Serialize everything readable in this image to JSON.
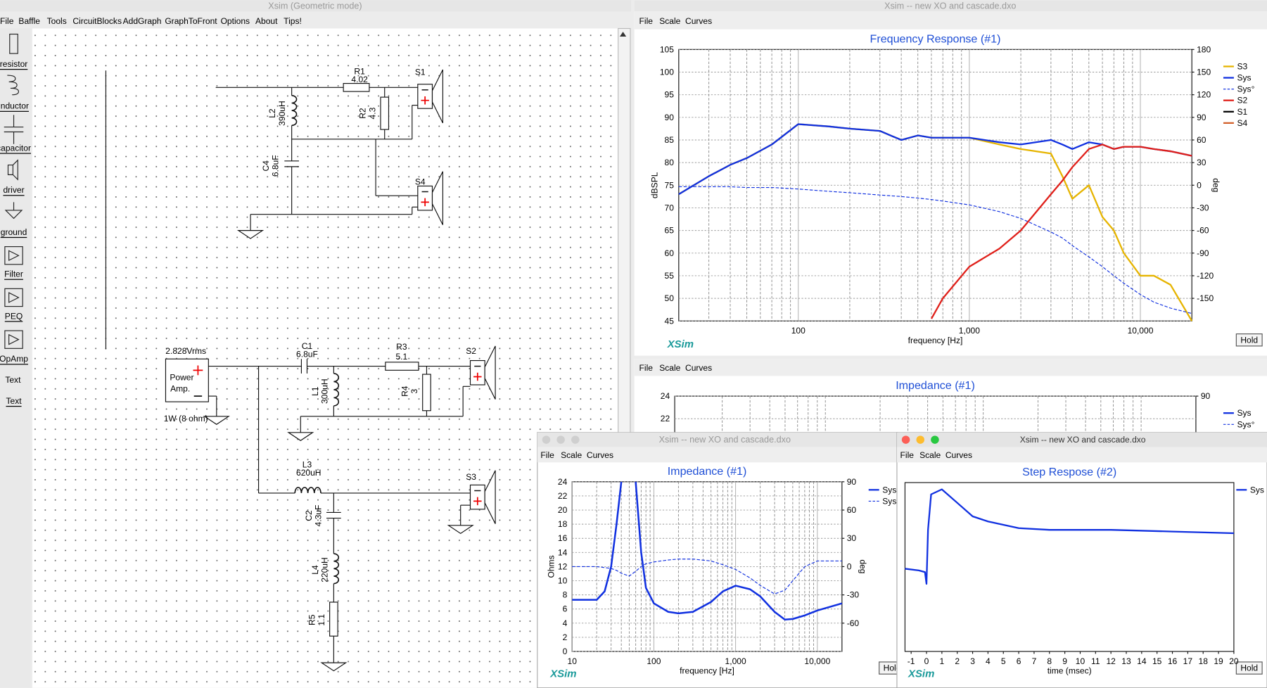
{
  "main": {
    "title": "Xsim (Geometric mode)",
    "menu": [
      "File",
      "Baffle",
      "Tools",
      "CircuitBlocks",
      "AddGraph",
      "GraphToFront",
      "Options",
      "About",
      "Tips!"
    ],
    "tools": [
      "resistor",
      "inductor",
      "capacitor",
      "driver",
      "ground",
      "Filter",
      "PEQ",
      "OpAmp",
      "Text"
    ],
    "text_icon": "Text",
    "components": [
      {
        "name": "R1",
        "value": "4.02"
      },
      {
        "name": "L2",
        "value": "390uH"
      },
      {
        "name": "R2",
        "value": "4.3"
      },
      {
        "name": "C4",
        "value": "6.8uF"
      },
      {
        "name": "C1",
        "value": "6.8uF"
      },
      {
        "name": "R3",
        "value": "5.1"
      },
      {
        "name": "L1",
        "value": "300uH"
      },
      {
        "name": "R4",
        "value": "3"
      },
      {
        "name": "L3",
        "value": "620uH"
      },
      {
        "name": "C2",
        "value": "4.3uF"
      },
      {
        "name": "L4",
        "value": "220uH"
      },
      {
        "name": "R5",
        "value": "1.1"
      }
    ],
    "drivers": [
      "S1",
      "S4",
      "S2",
      "S3"
    ],
    "amp": {
      "voltage": "2.828Vrms",
      "line1": "Power",
      "line2": "Amp.",
      "power": "1W (8 ohm)"
    }
  },
  "freq": {
    "title": "Xsim -- new XO and cascade.dxo",
    "menu": [
      "File",
      "Scale",
      "Curves"
    ],
    "brand": "XSim",
    "button": "Hold",
    "chart": {
      "type": "line",
      "title": "Frequency Response (#1)",
      "xlabel": "frequency [Hz]",
      "ylabel": "dBSPL",
      "y2label": "deg",
      "xlog": true,
      "grid": true,
      "legend": "right",
      "xlim": [
        20,
        20000
      ],
      "xticks": [
        100,
        {
          "value": 1000,
          "label": "1,000"
        },
        {
          "value": 10000,
          "label": "10,000"
        }
      ],
      "xminor": [
        30,
        40,
        50,
        60,
        70,
        80,
        90,
        200,
        300,
        400,
        500,
        600,
        700,
        800,
        900,
        2000,
        3000,
        4000,
        5000,
        6000,
        7000,
        8000,
        9000
      ],
      "ylim": [
        45,
        105
      ],
      "yticks": [
        45,
        50,
        55,
        60,
        65,
        70,
        75,
        80,
        85,
        90,
        95,
        100,
        105
      ],
      "y2lim": [
        -180,
        180
      ],
      "y2ticks": [
        -150,
        -120,
        -90,
        -60,
        -30,
        0,
        30,
        60,
        90,
        120,
        150,
        180
      ],
      "x": [
        20,
        30,
        40,
        50,
        70,
        100,
        150,
        200,
        300,
        400,
        500,
        600,
        700,
        1000,
        1500,
        2000,
        3000,
        3500,
        4000,
        5000,
        6000,
        7000,
        8000,
        10000,
        12000,
        15000,
        20000
      ],
      "series": [
        {
          "name": "S3",
          "color": "#e6b400",
          "values": [
            73,
            77,
            79.5,
            81,
            84,
            88.5,
            88,
            87.5,
            87,
            85,
            86,
            85.5,
            85.5,
            85.5,
            84,
            83,
            82,
            77,
            72,
            75,
            68,
            65,
            60,
            55,
            55,
            53,
            45
          ]
        },
        {
          "name": "Sys",
          "color": "#1030e0",
          "values": [
            73,
            77,
            79.5,
            81,
            84,
            88.5,
            88,
            87.5,
            87,
            85,
            86,
            85.5,
            85.5,
            85.5,
            84.5,
            84,
            85,
            84,
            83,
            84.5,
            84,
            83,
            83.5,
            83.5,
            83,
            82.5,
            81.5
          ]
        },
        {
          "name": "Sys°",
          "color": "#1030e0",
          "dashed": true,
          "axis": "y2",
          "values": [
            -2,
            -2,
            -2,
            -3,
            -3,
            -5,
            -8,
            -10,
            -13,
            -15,
            -17,
            -19,
            -21,
            -26,
            -35,
            -44,
            -62,
            -70,
            -80,
            -95,
            -108,
            -120,
            -130,
            -145,
            -155,
            -163,
            -170
          ]
        },
        {
          "name": "S2",
          "color": "#e0201a",
          "values": [
            null,
            null,
            null,
            null,
            null,
            null,
            null,
            null,
            null,
            null,
            null,
            45.5,
            50,
            57,
            61,
            65,
            73,
            76,
            79,
            83,
            84,
            83,
            83.5,
            83.5,
            83,
            82.5,
            81.5
          ]
        },
        {
          "name": "S1",
          "color": "#000000"
        },
        {
          "name": "S4",
          "color": "#d2602a"
        }
      ]
    }
  },
  "imp_back": {
    "menu": [
      "File",
      "Scale",
      "Curves"
    ],
    "chart": {
      "type": "line",
      "title": "Impedance (#1)",
      "xlog": true,
      "grid": true,
      "legend": "right",
      "xlim": [
        10,
        20000
      ],
      "xminor": [
        20,
        30,
        40,
        50,
        60,
        70,
        80,
        90,
        200,
        300,
        400,
        500,
        600,
        700,
        800,
        900,
        2000,
        3000,
        4000,
        5000,
        6000,
        7000,
        8000,
        9000
      ],
      "ylim": [
        0,
        24
      ],
      "yticks": [
        22,
        24
      ],
      "y2lim": [
        -90,
        90
      ],
      "y2ticks": [
        90
      ],
      "series": [
        {
          "name": "Sys",
          "color": "#1030e0"
        },
        {
          "name": "Sys°",
          "color": "#1030e0",
          "dashed": true
        }
      ]
    }
  },
  "imp_front": {
    "title": "Xsim -- new XO and cascade.dxo",
    "menu": [
      "File",
      "Scale",
      "Curves"
    ],
    "brand": "XSim",
    "button": "Hold",
    "chart": {
      "type": "line",
      "title": "Impedance (#1)",
      "xlabel": "frequency [Hz]",
      "ylabel": "Ohms",
      "y2label": "deg",
      "xlog": true,
      "grid": true,
      "legend": "right",
      "xlim": [
        10,
        20000
      ],
      "xticks": [
        10,
        100,
        {
          "value": 1000,
          "label": "1,000"
        },
        {
          "value": 10000,
          "label": "10,000"
        }
      ],
      "xminor": [
        20,
        30,
        40,
        50,
        60,
        70,
        80,
        90,
        200,
        300,
        400,
        500,
        600,
        700,
        800,
        900,
        2000,
        3000,
        4000,
        5000,
        6000,
        7000,
        8000,
        9000
      ],
      "ylim": [
        0,
        24
      ],
      "yticks": [
        0,
        2,
        4,
        6,
        8,
        10,
        12,
        14,
        16,
        18,
        20,
        22,
        24
      ],
      "y2lim": [
        -90,
        90
      ],
      "y2ticks": [
        -60,
        -30,
        0,
        30,
        60,
        90
      ],
      "x": [
        10,
        20,
        25,
        30,
        35,
        40,
        50,
        60,
        70,
        80,
        100,
        150,
        200,
        300,
        500,
        700,
        1000,
        1500,
        2000,
        3000,
        4000,
        5000,
        7000,
        10000,
        20000
      ],
      "series": [
        {
          "name": "Sys",
          "color": "#1030e0",
          "width": 2.2,
          "values": [
            7.3,
            7.3,
            8.5,
            12,
            18,
            24,
            null,
            24,
            14,
            9,
            6.8,
            5.6,
            5.4,
            5.6,
            7,
            8.5,
            9.3,
            8.8,
            7.8,
            5.6,
            4.5,
            4.6,
            5.1,
            5.8,
            6.8
          ]
        },
        {
          "name": "Sys°",
          "color": "#1030e0",
          "dashed": true,
          "axis": "y2",
          "values": [
            0,
            0,
            -1,
            -2,
            -4,
            -7,
            -10,
            -5,
            0,
            3,
            5,
            7,
            8,
            8,
            6,
            2,
            -3,
            -12,
            -20,
            -29,
            -25,
            -15,
            0,
            6,
            6
          ]
        }
      ]
    }
  },
  "step": {
    "title": "Xsim -- new XO and cascade.dxo",
    "menu": [
      "File",
      "Scale",
      "Curves"
    ],
    "brand": "XSim",
    "button": "Hold",
    "chart": {
      "type": "line",
      "title": "Step Respose (#2)",
      "xlabel": "time (msec)",
      "grid": false,
      "legend": "right",
      "xlim": [
        -1.4,
        20
      ],
      "xticks": [
        -1,
        0,
        1,
        2,
        3,
        4,
        5,
        6,
        7,
        8,
        9,
        10,
        11,
        12,
        13,
        14,
        15,
        16,
        17,
        18,
        19,
        20
      ],
      "ylim": [
        0,
        1
      ],
      "x": [
        -1.4,
        -0.5,
        -0.1,
        0,
        0.1,
        0.3,
        1,
        2,
        3,
        4,
        6,
        8,
        12,
        16,
        20
      ],
      "series": [
        {
          "name": "Sys",
          "color": "#1030e0",
          "values": [
            0.49,
            0.48,
            0.47,
            0.4,
            0.72,
            0.93,
            0.96,
            0.88,
            0.8,
            0.77,
            0.73,
            0.72,
            0.72,
            0.71,
            0.7
          ]
        }
      ]
    }
  }
}
